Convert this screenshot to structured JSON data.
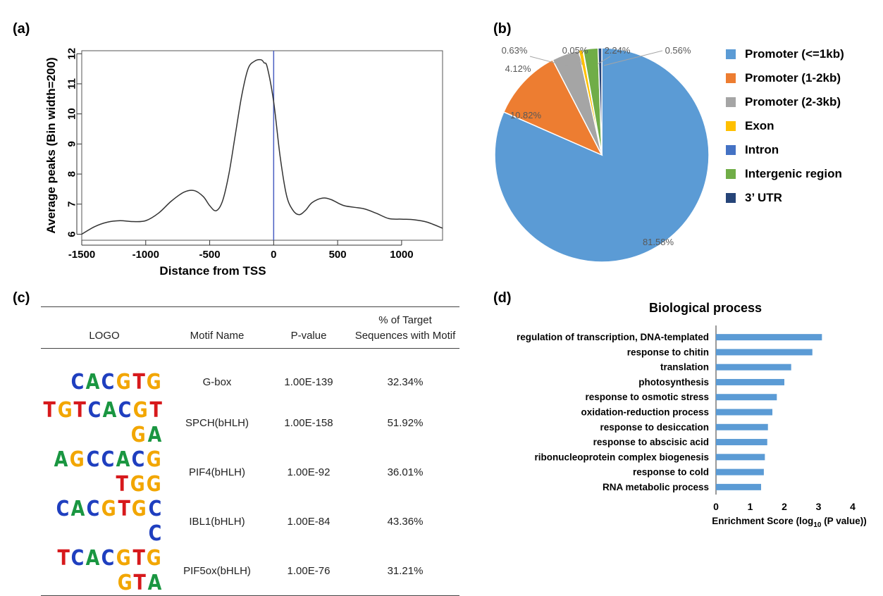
{
  "panel_labels": [
    "(a)",
    "(b)",
    "(c)",
    "(d)"
  ],
  "colors": {
    "line": "#333333",
    "tss_line": "#4a5fc1",
    "bar": "#5b9bd5"
  },
  "chart_data": [
    {
      "type": "line",
      "panel": "(a)",
      "title": "",
      "xlabel": "Distance from TSS",
      "ylabel": "Average peaks (Bin width=200)",
      "xlim": [
        -1500,
        1320
      ],
      "ylim": [
        5.8,
        12.1
      ],
      "xticks": [
        -1500,
        -1000,
        -500,
        0,
        500,
        1000
      ],
      "yticks": [
        6,
        7,
        8,
        9,
        10,
        11,
        12
      ],
      "vline_x": 0,
      "x": [
        -1500,
        -1400,
        -1300,
        -1200,
        -1100,
        -1000,
        -900,
        -800,
        -700,
        -620,
        -550,
        -500,
        -450,
        -400,
        -350,
        -300,
        -250,
        -200,
        -150,
        -100,
        -75,
        -50,
        0,
        50,
        100,
        150,
        200,
        250,
        300,
        380,
        450,
        550,
        700,
        800,
        900,
        1000,
        1100,
        1200,
        1320
      ],
      "y": [
        6.0,
        6.25,
        6.4,
        6.45,
        6.42,
        6.45,
        6.7,
        7.1,
        7.4,
        7.45,
        7.25,
        6.95,
        6.78,
        7.1,
        8.0,
        9.3,
        10.6,
        11.5,
        11.75,
        11.8,
        11.7,
        11.55,
        10.4,
        8.6,
        7.3,
        6.8,
        6.65,
        6.8,
        7.05,
        7.2,
        7.15,
        6.95,
        6.85,
        6.7,
        6.52,
        6.5,
        6.48,
        6.4,
        6.2
      ]
    },
    {
      "type": "pie",
      "panel": "(b)",
      "labels": [
        "Promoter (<=1kb)",
        "Promoter (1-2kb)",
        "Promoter (2-3kb)",
        "Exon",
        "Intron",
        "Intergenic region",
        "3’ UTR"
      ],
      "values": [
        81.58,
        10.82,
        4.12,
        0.63,
        0.05,
        2.24,
        0.56
      ],
      "value_labels": [
        "81.58%",
        "10.82%",
        "4.12%",
        "0.63%",
        "0.05%",
        "2.24%",
        "0.56%"
      ],
      "colors": [
        "#5b9bd5",
        "#ed7d31",
        "#a5a5a5",
        "#ffc000",
        "#4472c4",
        "#70ad47",
        "#264478"
      ],
      "legend_position": "right"
    },
    {
      "type": "table",
      "panel": "(c)",
      "columns": [
        "LOGO",
        "Motif Name",
        "P-value",
        "% of Target Sequences with Motif"
      ],
      "rows": [
        {
          "logo": "CACGTG",
          "name": "G-box",
          "pvalue": "1.00E-139",
          "percent": "32.34%"
        },
        {
          "logo": "TGTCACGTGA",
          "name": "SPCH(bHLH)",
          "pvalue": "1.00E-158",
          "percent": "51.92%"
        },
        {
          "logo": "AGCCACGTGG",
          "name": "PIF4(bHLH)",
          "pvalue": "1.00E-92",
          "percent": "36.01%"
        },
        {
          "logo": "CACGTGCC",
          "name": "IBL1(bHLH)",
          "pvalue": "1.00E-84",
          "percent": "43.36%"
        },
        {
          "logo": "TCACGTGGTA",
          "name": "PIF5ox(bHLH)",
          "pvalue": "1.00E-76",
          "percent": "31.21%"
        }
      ]
    },
    {
      "type": "bar",
      "panel": "(d)",
      "orientation": "horizontal",
      "title": "Biological process",
      "xlabel_main": "Enrichment Score (log",
      "xlabel_sub": "10",
      "xlabel_tail": " (P value))",
      "xlim": [
        0,
        4
      ],
      "xticks": [
        0,
        1,
        2,
        3,
        4
      ],
      "categories": [
        "regulation of transcription, DNA-templated",
        "response to chitin",
        "translation",
        "photosynthesis",
        "response to osmotic stress",
        "oxidation-reduction process",
        "response to desiccation",
        "response to abscisic acid",
        "ribonucleoprotein complex biogenesis",
        "response to cold",
        "RNA metabolic process"
      ],
      "values": [
        3.1,
        2.82,
        2.2,
        2.0,
        1.78,
        1.65,
        1.52,
        1.5,
        1.43,
        1.4,
        1.32
      ]
    }
  ]
}
